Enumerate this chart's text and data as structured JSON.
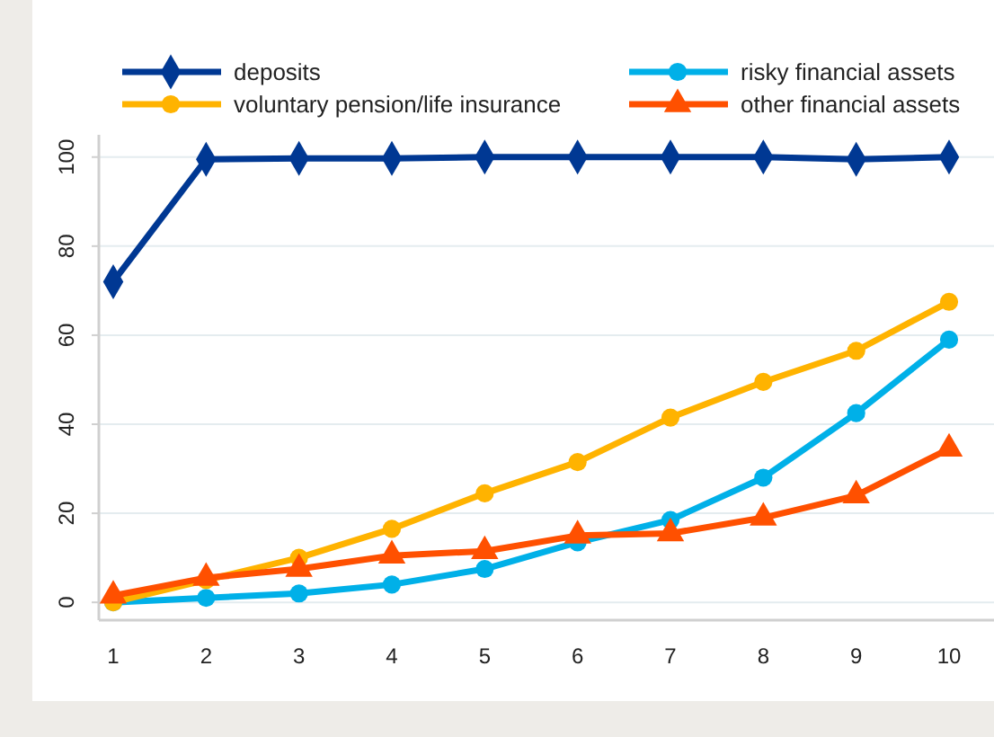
{
  "chart_data": {
    "type": "line",
    "categories": [
      "1",
      "2",
      "3",
      "4",
      "5",
      "6",
      "7",
      "8",
      "9",
      "10"
    ],
    "series": [
      {
        "name": "deposits",
        "color": "#003893",
        "marker": "diamond",
        "values": [
          72,
          99.5,
          99.7,
          99.7,
          100,
          100,
          100,
          100,
          99.5,
          100
        ]
      },
      {
        "name": "risky financial assets",
        "color": "#00b0e8",
        "marker": "circle",
        "values": [
          0,
          1,
          2,
          4,
          7.5,
          13.5,
          18.5,
          28,
          42.5,
          59
        ]
      },
      {
        "name": "voluntary pension/life insurance",
        "color": "#ffb300",
        "marker": "circle",
        "values": [
          0,
          5,
          10,
          16.5,
          24.5,
          31.5,
          41.5,
          49.5,
          56.5,
          67.5
        ]
      },
      {
        "name": "other financial assets",
        "color": "#ff5000",
        "marker": "triangle",
        "values": [
          1.5,
          5.5,
          7.5,
          10.5,
          11.5,
          15,
          15.5,
          19,
          24,
          34.5
        ]
      }
    ],
    "ylim": [
      -4,
      105
    ],
    "yticks": [
      0,
      20,
      40,
      60,
      80,
      100
    ],
    "grid": "y",
    "legend": "top",
    "line_style": "solid"
  }
}
